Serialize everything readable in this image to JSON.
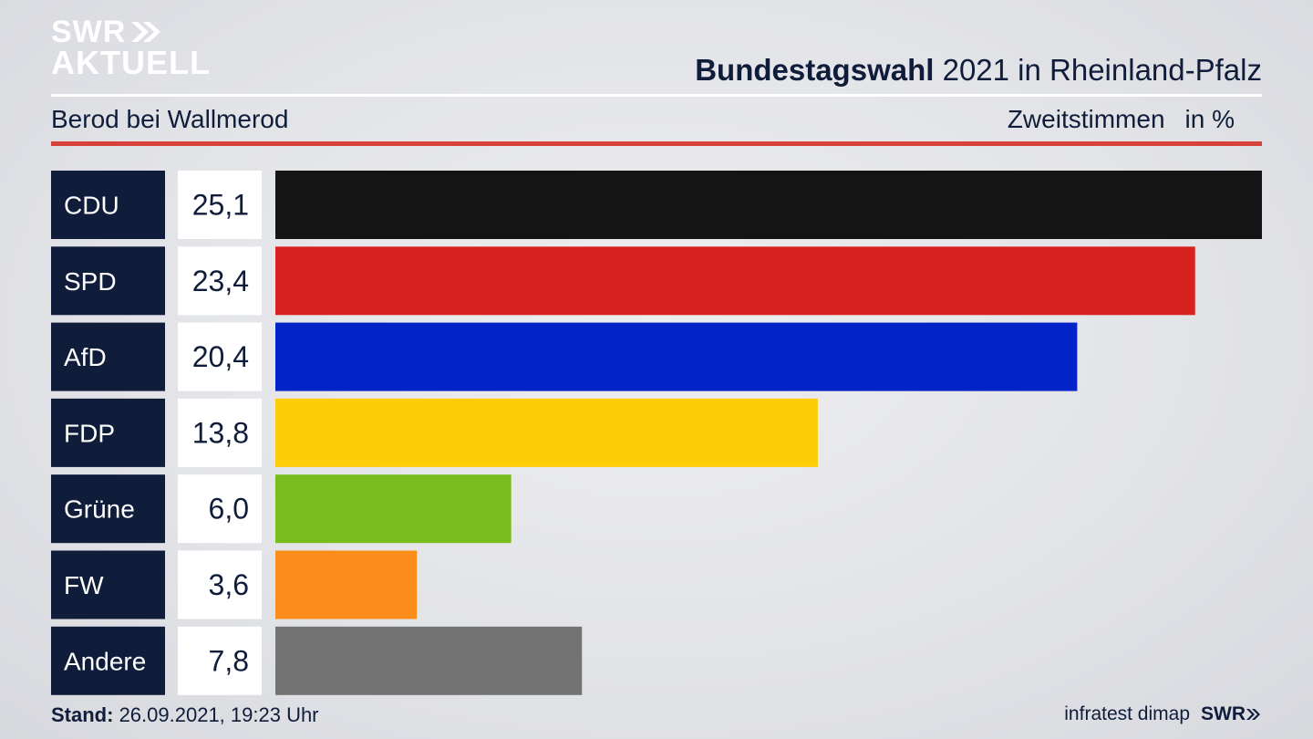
{
  "logo": {
    "line1": "SWR",
    "line2": "AKTUELL"
  },
  "header": {
    "title_bold": "Bundestagswahl",
    "title_rest": " 2021 in Rheinland-Pfalz",
    "location": "Berod bei Wallmerod",
    "measure": "Zweitstimmen",
    "unit": "in %"
  },
  "chart_data": {
    "type": "bar",
    "orientation": "horizontal",
    "categories": [
      "CDU",
      "SPD",
      "AfD",
      "FDP",
      "Grüne",
      "FW",
      "Andere"
    ],
    "values": [
      25.1,
      23.4,
      20.4,
      13.8,
      6.0,
      3.6,
      7.8
    ],
    "value_labels": [
      "25,1",
      "23,4",
      "20,4",
      "13,8",
      "6,0",
      "3,6",
      "7,8"
    ],
    "colors": [
      "#141414",
      "#d82220",
      "#0123c8",
      "#fdcd0a",
      "#79bd1d",
      "#fb8e1b",
      "#737373"
    ],
    "xlim": [
      0,
      25.1
    ]
  },
  "footer": {
    "stand_label": "Stand:",
    "stand_value": " 26.09.2021, 19:23 Uhr",
    "source": "infratest dimap",
    "brand": "SWR"
  },
  "palette": {
    "label_bg": "#0f1d3b",
    "value_bg": "#ffffff",
    "accent_red": "#d7423c"
  }
}
